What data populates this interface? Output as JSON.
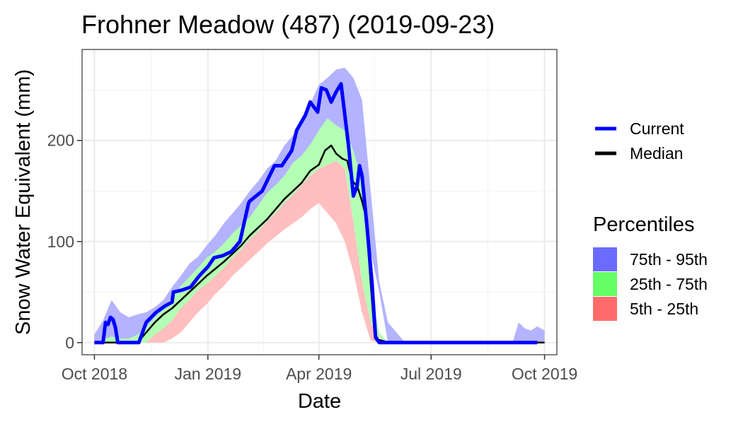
{
  "chart_data": {
    "type": "area",
    "title": "Frohner Meadow (487) (2019-09-23)",
    "xlabel": "Date",
    "ylabel": "Snow Water Equivalent (mm)",
    "x_ticks": [
      "Oct 2018",
      "Jan 2019",
      "Apr 2019",
      "Jul 2019",
      "Oct 2019"
    ],
    "y_ticks": [
      "0",
      "100",
      "200"
    ],
    "xlim": [
      "2018-09-21",
      "2019-10-11"
    ],
    "ylim": [
      -12,
      290
    ],
    "legend_lines": [
      {
        "name": "Current",
        "color": "#0000ff"
      },
      {
        "name": "Median",
        "color": "#000000"
      }
    ],
    "legend_title": "Percentiles",
    "legend_fills": [
      {
        "name": "75th - 95th",
        "color": "#6b6bff"
      },
      {
        "name": "25th - 75th",
        "color": "#66ff66"
      },
      {
        "name": "5th - 25th",
        "color": "#ff6b6b"
      }
    ],
    "bands": [
      {
        "name": "75th - 95th",
        "color": "#b3b3ff",
        "x": [
          "2018-10-01",
          "2018-10-08",
          "2018-10-15",
          "2018-10-22",
          "2018-10-29",
          "2018-11-05",
          "2018-11-12",
          "2018-11-19",
          "2018-11-26",
          "2018-12-03",
          "2018-12-10",
          "2018-12-17",
          "2018-12-24",
          "2018-12-31",
          "2019-01-07",
          "2019-01-14",
          "2019-01-21",
          "2019-01-28",
          "2019-02-04",
          "2019-02-11",
          "2019-02-18",
          "2019-02-25",
          "2019-03-04",
          "2019-03-11",
          "2019-03-18",
          "2019-03-25",
          "2019-04-01",
          "2019-04-08",
          "2019-04-15",
          "2019-04-22",
          "2019-04-29",
          "2019-05-06",
          "2019-05-13",
          "2019-05-20",
          "2019-05-27",
          "2019-06-03",
          "2019-06-10",
          "2019-06-17",
          "2019-06-24",
          "2019-07-01",
          "2019-09-05",
          "2019-09-10",
          "2019-09-15",
          "2019-09-20",
          "2019-09-25",
          "2019-10-01"
        ],
        "lower": [
          0,
          0,
          0,
          0,
          0,
          0,
          5,
          20,
          28,
          35,
          48,
          55,
          64,
          70,
          76,
          82,
          92,
          100,
          110,
          125,
          133,
          142,
          150,
          158,
          168,
          178,
          186,
          200,
          205,
          200,
          165,
          130,
          90,
          50,
          0,
          0,
          0,
          0,
          0,
          0,
          0,
          0,
          0,
          0,
          0,
          0
        ],
        "upper": [
          8,
          22,
          42,
          30,
          25,
          28,
          30,
          35,
          42,
          55,
          66,
          78,
          85,
          96,
          106,
          118,
          128,
          138,
          150,
          160,
          172,
          180,
          195,
          205,
          220,
          236,
          255,
          262,
          270,
          272,
          262,
          240,
          150,
          60,
          20,
          10,
          0,
          0,
          0,
          0,
          0,
          20,
          14,
          12,
          16,
          12
        ]
      },
      {
        "name": "25th - 75th",
        "color": "#b3ffb3",
        "x": [
          "2018-10-01",
          "2018-10-08",
          "2018-10-15",
          "2018-10-22",
          "2018-10-29",
          "2018-11-05",
          "2018-11-12",
          "2018-11-19",
          "2018-11-26",
          "2018-12-03",
          "2018-12-10",
          "2018-12-17",
          "2018-12-24",
          "2018-12-31",
          "2019-01-07",
          "2019-01-14",
          "2019-01-21",
          "2019-01-28",
          "2019-02-04",
          "2019-02-11",
          "2019-02-18",
          "2019-02-25",
          "2019-03-04",
          "2019-03-11",
          "2019-03-18",
          "2019-03-25",
          "2019-04-01",
          "2019-04-08",
          "2019-04-15",
          "2019-04-22",
          "2019-04-29",
          "2019-05-06",
          "2019-05-13",
          "2019-05-20",
          "2019-05-27",
          "2019-06-03"
        ],
        "lower": [
          0,
          0,
          0,
          0,
          0,
          0,
          0,
          8,
          14,
          22,
          34,
          42,
          52,
          58,
          66,
          74,
          84,
          92,
          102,
          110,
          120,
          128,
          138,
          146,
          156,
          165,
          172,
          176,
          180,
          172,
          120,
          60,
          20,
          5,
          0,
          0
        ],
        "upper": [
          0,
          3,
          6,
          4,
          4,
          8,
          15,
          25,
          33,
          45,
          56,
          65,
          74,
          84,
          90,
          98,
          108,
          116,
          124,
          136,
          148,
          156,
          165,
          178,
          185,
          196,
          210,
          222,
          215,
          210,
          190,
          160,
          50,
          10,
          0,
          0
        ]
      },
      {
        "name": "5th - 25th",
        "color": "#ffbfbf",
        "x": [
          "2018-10-01",
          "2018-10-08",
          "2018-10-15",
          "2018-10-22",
          "2018-10-29",
          "2018-11-05",
          "2018-11-12",
          "2018-11-19",
          "2018-11-26",
          "2018-12-03",
          "2018-12-10",
          "2018-12-17",
          "2018-12-24",
          "2018-12-31",
          "2019-01-07",
          "2019-01-14",
          "2019-01-21",
          "2019-01-28",
          "2019-02-04",
          "2019-02-11",
          "2019-02-18",
          "2019-02-25",
          "2019-03-04",
          "2019-03-11",
          "2019-03-18",
          "2019-03-25",
          "2019-04-01",
          "2019-04-08",
          "2019-04-15",
          "2019-04-22",
          "2019-04-29",
          "2019-05-06",
          "2019-05-13",
          "2019-05-20"
        ],
        "lower": [
          0,
          0,
          0,
          0,
          0,
          0,
          0,
          0,
          0,
          4,
          10,
          20,
          30,
          38,
          48,
          56,
          66,
          74,
          82,
          90,
          98,
          105,
          112,
          118,
          124,
          132,
          138,
          128,
          118,
          100,
          70,
          30,
          2,
          0
        ],
        "upper": [
          0,
          0,
          0,
          0,
          0,
          0,
          0,
          8,
          14,
          22,
          34,
          42,
          52,
          58,
          66,
          74,
          84,
          92,
          102,
          110,
          120,
          128,
          138,
          146,
          156,
          165,
          172,
          176,
          180,
          172,
          120,
          60,
          20,
          5
        ]
      }
    ],
    "series": [
      {
        "name": "Current",
        "color": "#0000ff",
        "x": [
          "2018-10-01",
          "2018-10-08",
          "2018-10-10",
          "2018-10-12",
          "2018-10-14",
          "2018-10-16",
          "2018-10-18",
          "2018-10-20",
          "2018-10-22",
          "2018-10-24",
          "2018-11-01",
          "2018-11-06",
          "2018-11-12",
          "2018-11-20",
          "2018-11-27",
          "2018-12-03",
          "2018-12-04",
          "2018-12-11",
          "2018-12-18",
          "2018-12-25",
          "2019-01-01",
          "2019-01-06",
          "2019-01-13",
          "2019-01-20",
          "2019-01-27",
          "2019-02-03",
          "2019-02-04",
          "2019-02-14",
          "2019-02-24",
          "2019-03-02",
          "2019-03-10",
          "2019-03-14",
          "2019-03-21",
          "2019-03-25",
          "2019-03-31",
          "2019-04-03",
          "2019-04-07",
          "2019-04-11",
          "2019-04-15",
          "2019-04-19",
          "2019-04-25",
          "2019-04-29",
          "2019-05-02",
          "2019-05-04",
          "2019-05-06",
          "2019-05-10",
          "2019-05-14",
          "2019-05-17",
          "2019-05-20",
          "2019-05-22",
          "2019-09-25"
        ],
        "y": [
          0,
          0,
          20,
          18,
          25,
          23,
          15,
          0,
          0,
          0,
          0,
          0,
          20,
          30,
          36,
          40,
          50,
          52,
          55,
          66,
          75,
          84,
          86,
          90,
          100,
          138,
          140,
          150,
          175,
          175,
          190,
          210,
          225,
          238,
          228,
          252,
          250,
          238,
          248,
          256,
          195,
          145,
          155,
          175,
          165,
          115,
          60,
          5,
          0,
          0,
          0
        ]
      },
      {
        "name": "Median",
        "color": "#000000",
        "x": [
          "2018-10-01",
          "2018-10-15",
          "2018-10-29",
          "2018-11-05",
          "2018-11-12",
          "2018-11-19",
          "2018-11-26",
          "2018-12-03",
          "2018-12-10",
          "2018-12-17",
          "2018-12-24",
          "2018-12-31",
          "2019-01-07",
          "2019-01-14",
          "2019-01-21",
          "2019-01-28",
          "2019-02-04",
          "2019-02-11",
          "2019-02-18",
          "2019-02-25",
          "2019-03-04",
          "2019-03-11",
          "2019-03-18",
          "2019-03-25",
          "2019-04-01",
          "2019-04-06",
          "2019-04-11",
          "2019-04-15",
          "2019-04-20",
          "2019-04-24",
          "2019-04-28",
          "2019-05-02",
          "2019-05-06",
          "2019-05-09",
          "2019-05-12",
          "2019-05-16",
          "2019-05-19",
          "2019-05-22",
          "2019-05-28",
          "2019-10-01"
        ],
        "y": [
          0,
          0,
          0,
          0,
          10,
          20,
          28,
          34,
          42,
          50,
          58,
          66,
          73,
          80,
          88,
          96,
          106,
          114,
          122,
          132,
          142,
          150,
          158,
          170,
          176,
          190,
          195,
          187,
          182,
          180,
          160,
          155,
          140,
          125,
          75,
          10,
          3,
          2,
          0,
          0
        ]
      }
    ]
  }
}
